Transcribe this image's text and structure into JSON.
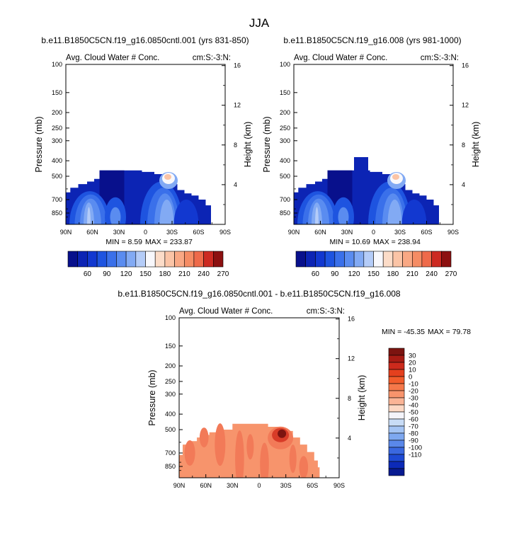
{
  "figure_title": "JJA",
  "colors": {
    "c60": "#08108c",
    "c70": "#0c24b4",
    "c90": "#1238d0",
    "c105": "#1e54e0",
    "c120": "#3a70ea",
    "c135": "#5a8cf0",
    "c150": "#82aaf4",
    "c165": "#b4ccf8",
    "c180": "#f8f8fc",
    "c195": "#fcdcc8",
    "c210": "#fbc4a6",
    "c225": "#f9a884",
    "c240": "#f58c64",
    "c255": "#ee6a4a",
    "c270": "#cc2a22",
    "c285": "#8c1010",
    "d_bg": "#f7946c",
    "d_warm": "#f27a58",
    "d_hot": "#d83c28",
    "d_dark": "#7c1410"
  },
  "chart_data": [
    {
      "id": "panel_a",
      "type": "contour",
      "title": "b.e11.B1850C5CN.f19_g16.0850cntl.001 (yrs 831-850)",
      "subtitle_left": "Avg. Cloud Water # Conc.",
      "subtitle_right": "cm:S:-3:N:",
      "xlabel": "",
      "ylabel": "Pressure (mb)",
      "ylabel_right": "Height (km)",
      "x_ticks": [
        "90N",
        "60N",
        "30N",
        "0",
        "30S",
        "60S",
        "90S"
      ],
      "y_ticks": [
        "100",
        "150",
        "200",
        "250",
        "300",
        "400",
        "500",
        "700",
        "850"
      ],
      "y_right_ticks": [
        "16",
        "12",
        "8",
        "4"
      ],
      "xlim": [
        90,
        -90
      ],
      "ylim": [
        100,
        1000
      ],
      "min_label": "MIN =   8.59",
      "max_label": "MAX = 233.87",
      "cloud_top_mb": 460,
      "colorbar": {
        "orientation": "horizontal",
        "labels": [
          "60",
          "90",
          "120",
          "150",
          "180",
          "210",
          "240",
          "270"
        ],
        "colors": [
          "#08108c",
          "#0c24b4",
          "#1238d0",
          "#1e54e0",
          "#3a70ea",
          "#5a8cf0",
          "#82aaf4",
          "#b4ccf8",
          "#f8f8fc",
          "#fcdcc8",
          "#fbc4a6",
          "#f9a884",
          "#f58c64",
          "#ee6a4a",
          "#cc2a22",
          "#8c1010"
        ]
      }
    },
    {
      "id": "panel_b",
      "type": "contour",
      "title": "b.e11.B1850C5CN.f19_g16.008 (yrs 981-1000)",
      "subtitle_left": "Avg. Cloud Water # Conc.",
      "subtitle_right": "cm:S:-3:N:",
      "xlabel": "",
      "ylabel": "Pressure (mb)",
      "ylabel_right": "Height (km)",
      "x_ticks": [
        "90N",
        "60N",
        "30N",
        "0",
        "30S",
        "60S",
        "90S"
      ],
      "y_ticks": [
        "100",
        "150",
        "200",
        "250",
        "300",
        "400",
        "500",
        "700",
        "850"
      ],
      "y_right_ticks": [
        "16",
        "12",
        "8",
        "4"
      ],
      "xlim": [
        90,
        -90
      ],
      "ylim": [
        100,
        1000
      ],
      "min_label": "MIN = 10.69",
      "max_label": "MAX = 238.94",
      "cloud_top_mb": 460,
      "colorbar": {
        "orientation": "horizontal",
        "labels": [
          "60",
          "90",
          "120",
          "150",
          "180",
          "210",
          "240",
          "270"
        ],
        "colors": [
          "#08108c",
          "#0c24b4",
          "#1238d0",
          "#1e54e0",
          "#3a70ea",
          "#5a8cf0",
          "#82aaf4",
          "#b4ccf8",
          "#f8f8fc",
          "#fcdcc8",
          "#fbc4a6",
          "#f9a884",
          "#f58c64",
          "#ee6a4a",
          "#cc2a22",
          "#8c1010"
        ]
      }
    },
    {
      "id": "panel_diff",
      "type": "contour",
      "title": "b.e11.B1850C5CN.f19_g16.0850cntl.001 - b.e11.B1850C5CN.f19_g16.008",
      "subtitle_left": "Avg. Cloud Water # Conc.",
      "subtitle_right": "cm:S:-3:N:",
      "xlabel": "",
      "ylabel": "Pressure (mb)",
      "ylabel_right": "Height (km)",
      "x_ticks": [
        "90N",
        "60N",
        "30N",
        "0",
        "30S",
        "60S",
        "90S"
      ],
      "y_ticks": [
        "100",
        "150",
        "200",
        "250",
        "300",
        "400",
        "500",
        "700",
        "850"
      ],
      "y_right_ticks": [
        "16",
        "12",
        "8",
        "4"
      ],
      "xlim": [
        90,
        -90
      ],
      "ylim": [
        100,
        1000
      ],
      "min_label": "MIN = -45.35",
      "max_label": "MAX =  79.78",
      "cloud_top_mb": 460,
      "colorbar": {
        "orientation": "vertical",
        "labels": [
          "30",
          "20",
          "10",
          "0",
          "-10",
          "-20",
          "-30",
          "-40",
          "-50",
          "-60",
          "-70",
          "-80",
          "-90",
          "-100",
          "-110"
        ],
        "colors": [
          "#7c1410",
          "#a81c14",
          "#cc2a1c",
          "#e4401e",
          "#f25c2c",
          "#f5784a",
          "#f8946c",
          "#fab496",
          "#fcd8c4",
          "#f4f4fa",
          "#c8dcf6",
          "#a4c4f4",
          "#7ea8f0",
          "#5a88ea",
          "#3a68e0",
          "#1e4ad4",
          "#0c2ab8",
          "#081a90"
        ]
      }
    }
  ]
}
